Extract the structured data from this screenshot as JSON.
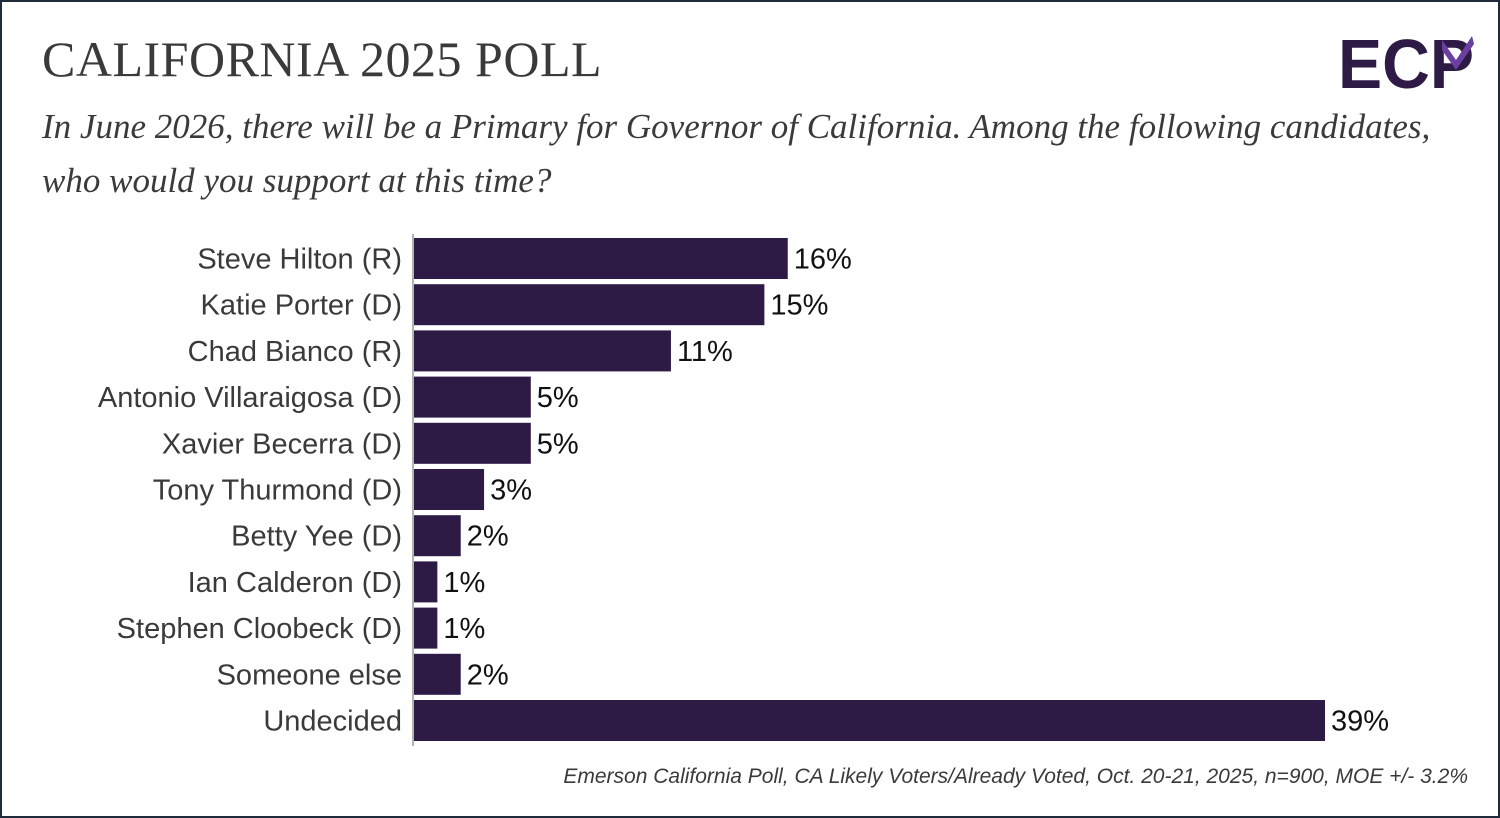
{
  "header": {
    "title": "CALIFORNIA 2025 POLL",
    "subtitle": "In June 2026, there will be a Primary for Governor of California. Among the following candidates, who would you support at this time?",
    "logo_text": "ECP"
  },
  "footer": {
    "source": "Emerson California Poll, CA Likely Voters/Already Voted, Oct. 20-21, 2025, n=900, MOE +/- 3.2%"
  },
  "colors": {
    "bar": "#2d1a45",
    "logo": "#2d1a45",
    "logo_accent": "#6b3fa0",
    "border": "#1f2b3a"
  },
  "chart_data": {
    "type": "bar",
    "orientation": "horizontal",
    "title": "",
    "xlabel": "",
    "ylabel": "",
    "categories": [
      "Steve Hilton (R)",
      "Katie Porter (D)",
      "Chad Bianco (R)",
      "Antonio Villaraigosa (D)",
      "Xavier Becerra (D)",
      "Tony Thurmond (D)",
      "Betty Yee (D)",
      "Ian Calderon (D)",
      "Stephen Cloobeck (D)",
      "Someone else",
      "Undecided"
    ],
    "values": [
      16,
      15,
      11,
      5,
      5,
      3,
      2,
      1,
      1,
      2,
      39
    ],
    "value_suffix": "%",
    "xlim": [
      0,
      39
    ],
    "grid": false,
    "legend": "none"
  }
}
